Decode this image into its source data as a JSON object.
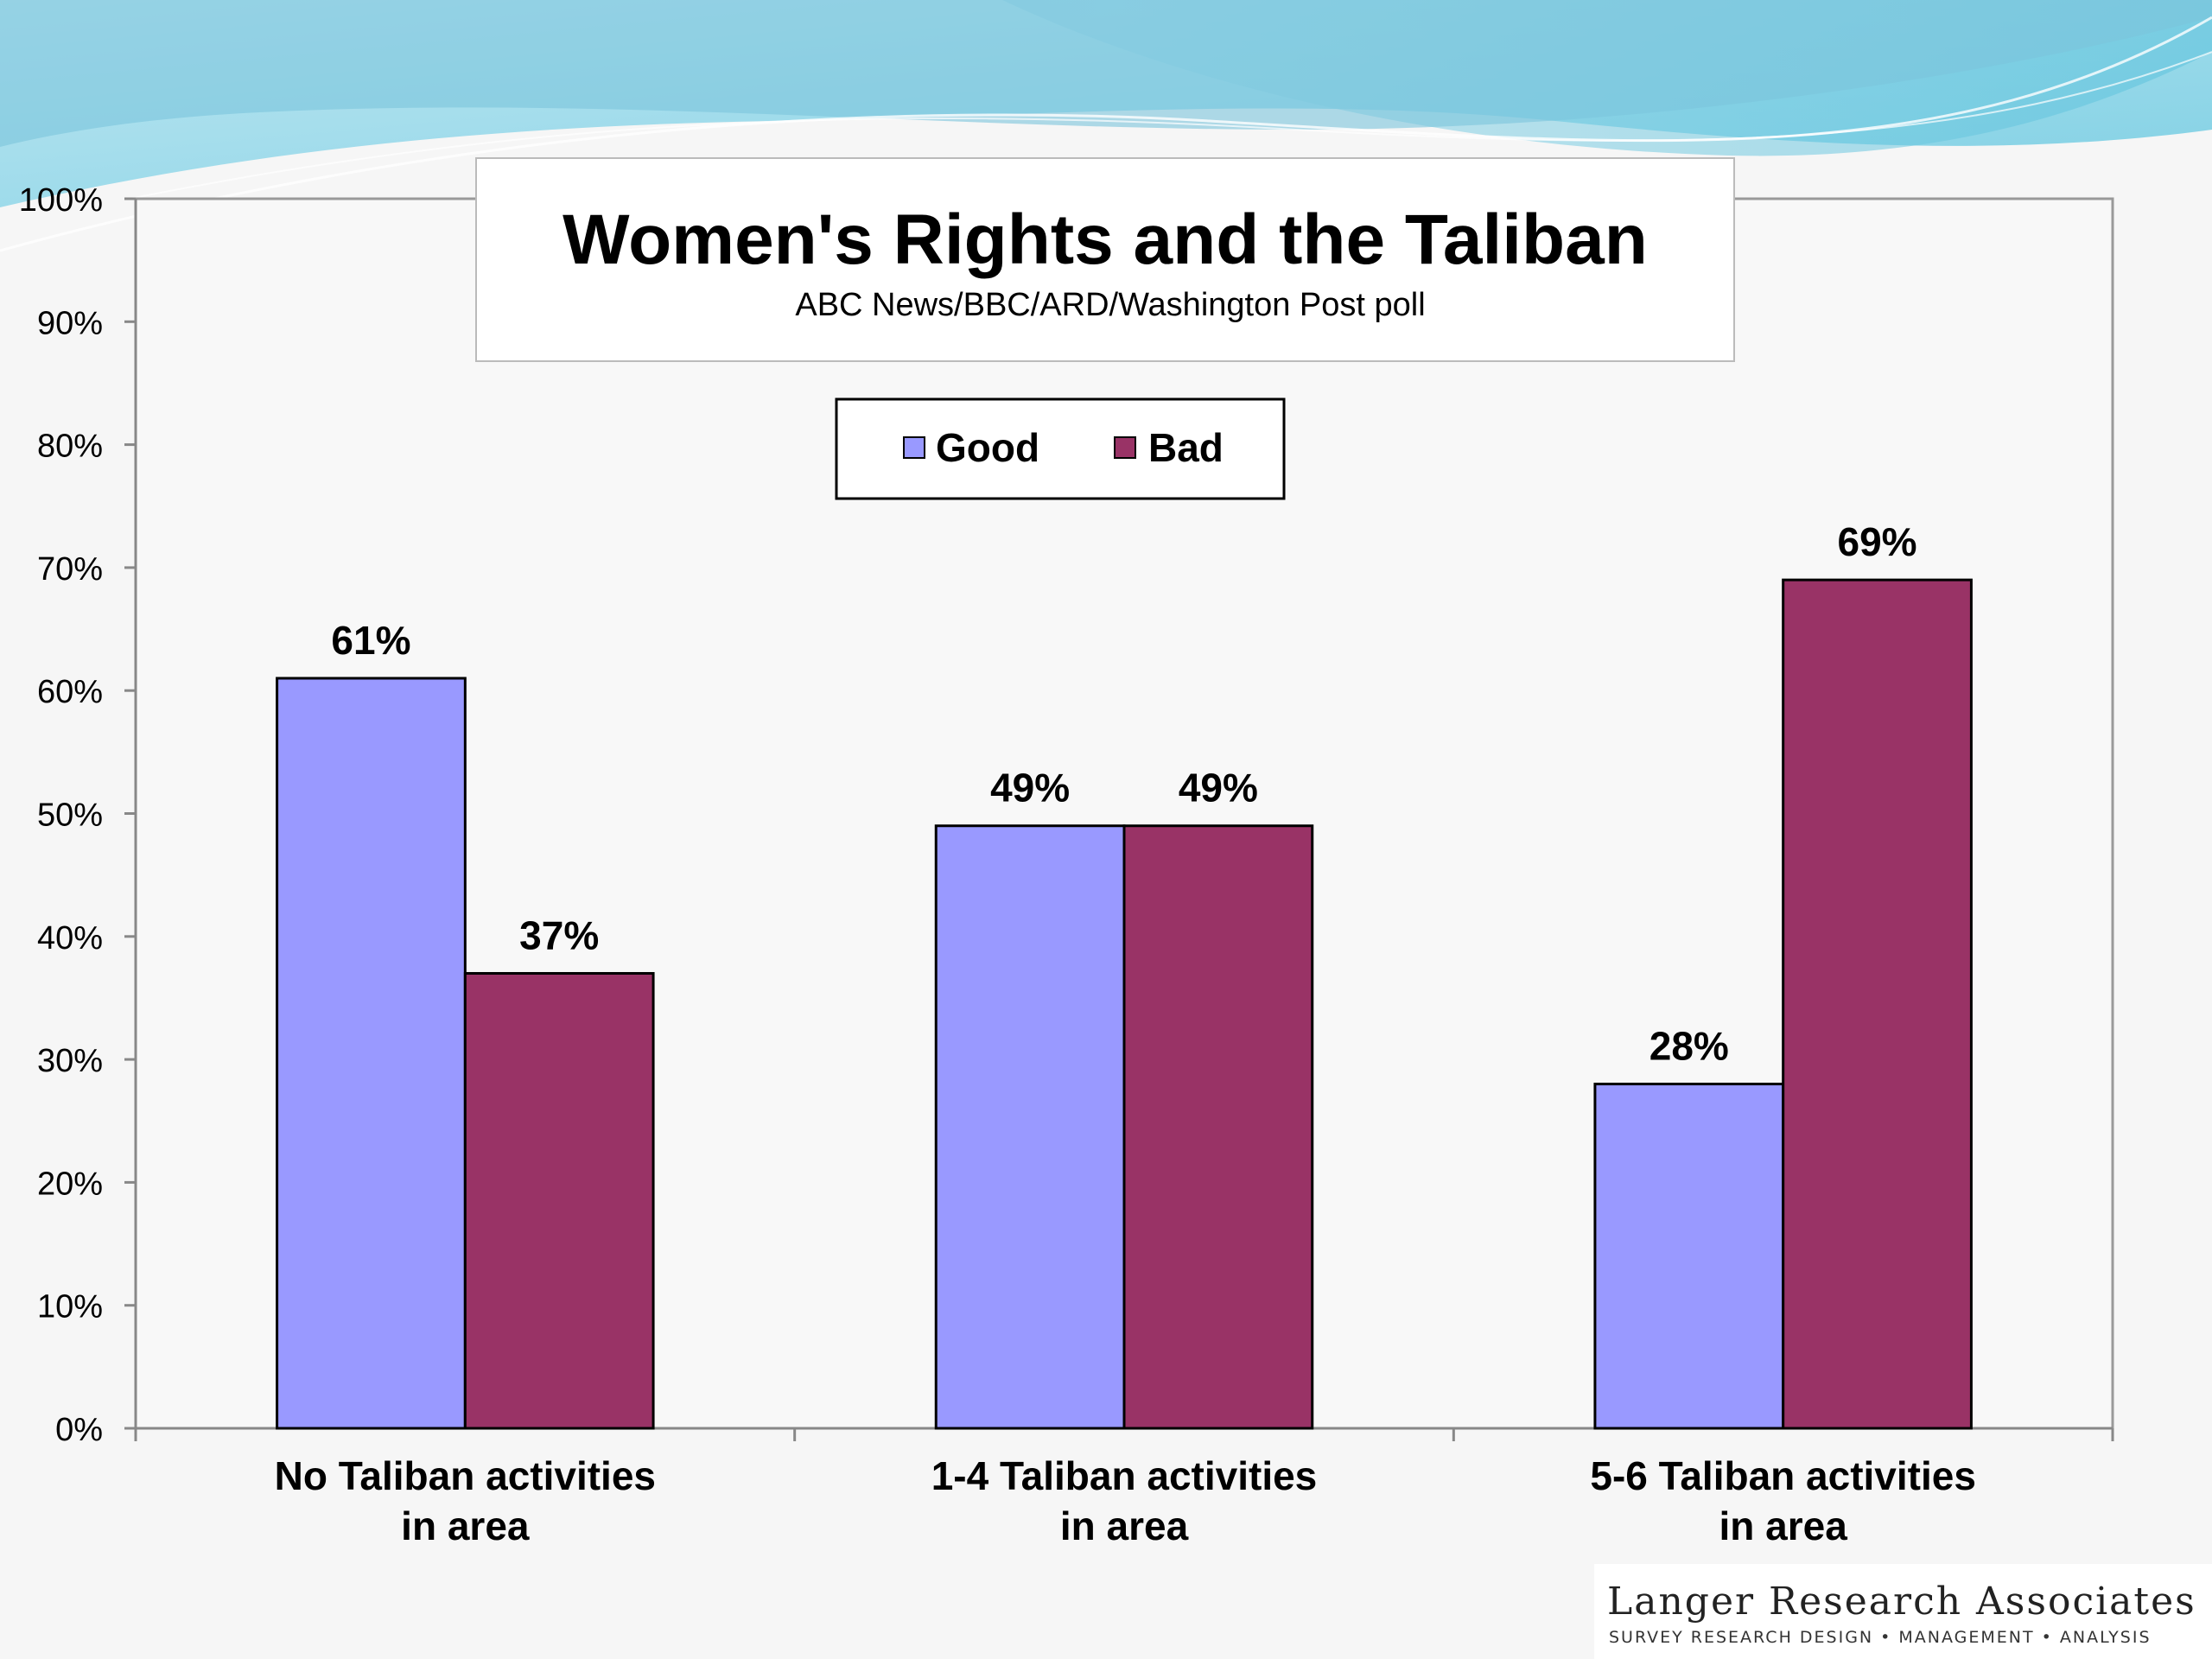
{
  "chart_data": {
    "type": "bar",
    "title": "Women's Rights and the Taliban",
    "subtitle": "ABC News/BBC/ARD/Washington Post poll",
    "categories": [
      "No Taliban activities in area",
      "1-4 Taliban activities in area",
      "5-6 Taliban activities in area"
    ],
    "category_lines": [
      [
        "No Taliban activities",
        "in area"
      ],
      [
        "1-4 Taliban activities",
        "in area"
      ],
      [
        "5-6 Taliban activities",
        "in area"
      ]
    ],
    "series": [
      {
        "name": "Good",
        "values": [
          61,
          49,
          28
        ],
        "labels": [
          "61%",
          "49%",
          "28%"
        ],
        "color": "#9999ff"
      },
      {
        "name": "Bad",
        "values": [
          37,
          49,
          69
        ],
        "labels": [
          "37%",
          "49%",
          "69%"
        ],
        "color": "#993366"
      }
    ],
    "ylim": [
      0,
      100
    ],
    "yticks": [
      "0%",
      "10%",
      "20%",
      "30%",
      "40%",
      "50%",
      "60%",
      "70%",
      "80%",
      "90%",
      "100%"
    ],
    "legend_position": "top-center",
    "grid": false
  },
  "footer": {
    "logo_name": "Langer Research Associates",
    "logo_tagline": "SURVEY RESEARCH DESIGN • MANAGEMENT • ANALYSIS"
  }
}
